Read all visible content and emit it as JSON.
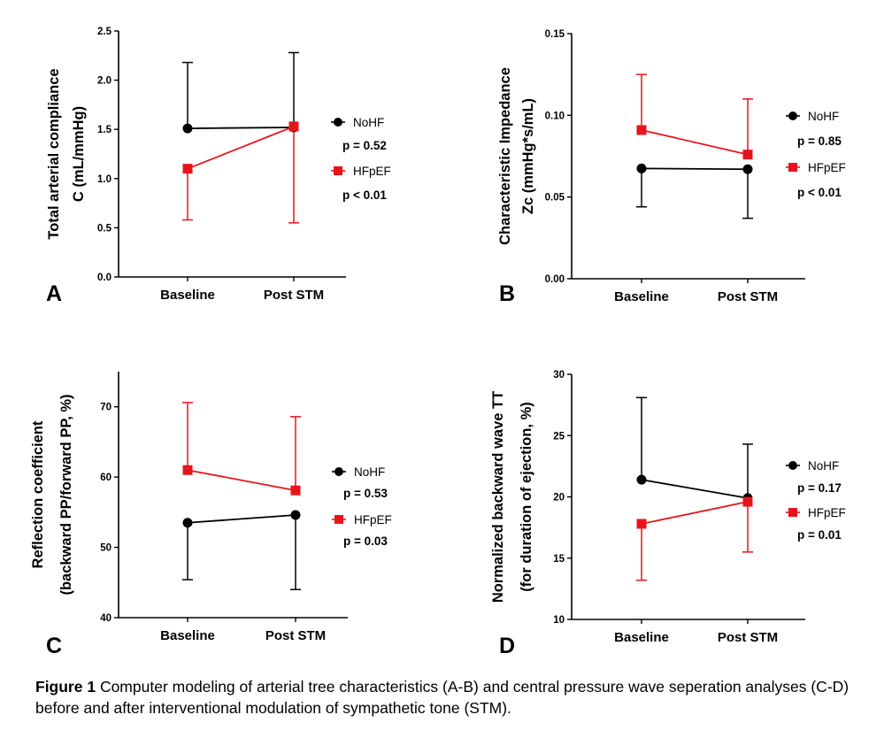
{
  "caption": {
    "lead": "Figure 1",
    "text": " Computer modeling of arterial tree characteristics (A-B) and central pressure wave seperation analyses (C-D) before and after interventional modulation of sympathetic tone (STM)."
  },
  "chart_data": [
    {
      "type": "line",
      "panel_label": "A",
      "categories": [
        "Baseline",
        "Post STM"
      ],
      "ylabel": [
        "Total arterial compliance",
        "C (mL/mmHg)"
      ],
      "ylim": [
        0,
        2.5
      ],
      "yticks": [
        "0.0",
        "0.5",
        "1.0",
        "1.5",
        "2.0",
        "2.5"
      ],
      "tick_values": [
        0,
        0.5,
        1.0,
        1.5,
        2.0,
        2.5
      ],
      "series": [
        {
          "name": "NoHF",
          "p_label": "p = 0.52",
          "color": "#000000",
          "marker": "circle",
          "values": [
            1.51,
            1.52
          ],
          "errors": [
            {
              "dir": "up",
              "to": 2.18
            },
            {
              "dir": "up",
              "to": 2.28
            }
          ]
        },
        {
          "name": "HFpEF",
          "p_label": "p < 0.01",
          "color": "#e8141b",
          "marker": "square",
          "values": [
            1.1,
            1.53
          ],
          "errors": [
            {
              "dir": "down",
              "to": 0.58
            },
            {
              "dir": "down",
              "to": 0.55
            }
          ]
        }
      ]
    },
    {
      "type": "line",
      "panel_label": "B",
      "categories": [
        "Baseline",
        "Post STM"
      ],
      "ylabel": [
        "Characteristic Impedance",
        "Zc (mmHg*s/mL)"
      ],
      "ylim": [
        0,
        0.15
      ],
      "yticks": [
        "0.00",
        "0.05",
        "0.10",
        "0.15"
      ],
      "tick_values": [
        0,
        0.05,
        0.1,
        0.15
      ],
      "series": [
        {
          "name": "NoHF",
          "p_label": "p = 0.85",
          "color": "#000000",
          "marker": "circle",
          "values": [
            0.0675,
            0.067
          ],
          "errors": [
            {
              "dir": "down",
              "to": 0.044
            },
            {
              "dir": "down",
              "to": 0.037
            }
          ]
        },
        {
          "name": "HFpEF",
          "p_label": "p < 0.01",
          "color": "#e8141b",
          "marker": "square",
          "values": [
            0.091,
            0.076
          ],
          "errors": [
            {
              "dir": "up",
              "to": 0.125
            },
            {
              "dir": "up",
              "to": 0.11
            }
          ]
        }
      ]
    },
    {
      "type": "line",
      "panel_label": "C",
      "categories": [
        "Baseline",
        "Post STM"
      ],
      "ylabel": [
        "Reflection coefficient",
        "(backward PP/forward PP, %)"
      ],
      "ylim": [
        40,
        75
      ],
      "yticks": [
        "40",
        "50",
        "60",
        "70"
      ],
      "tick_values": [
        40,
        50,
        60,
        70
      ],
      "series": [
        {
          "name": "NoHF",
          "p_label": "p = 0.53",
          "color": "#000000",
          "marker": "circle",
          "values": [
            53.5,
            54.6
          ],
          "errors": [
            {
              "dir": "down",
              "to": 45.4
            },
            {
              "dir": "down",
              "to": 44.0
            }
          ]
        },
        {
          "name": "HFpEF",
          "p_label": "p = 0.03",
          "color": "#e8141b",
          "marker": "square",
          "values": [
            61.0,
            58.1
          ],
          "errors": [
            {
              "dir": "up",
              "to": 70.6
            },
            {
              "dir": "up",
              "to": 68.6
            }
          ]
        }
      ]
    },
    {
      "type": "line",
      "panel_label": "D",
      "categories": [
        "Baseline",
        "Post STM"
      ],
      "ylabel": [
        "Normalized backward wave TT",
        "(for duration of ejection, %)"
      ],
      "ylim": [
        10,
        30
      ],
      "yticks": [
        "10",
        "15",
        "20",
        "25",
        "30"
      ],
      "tick_values": [
        10,
        15,
        20,
        25,
        30
      ],
      "series": [
        {
          "name": "NoHF",
          "p_label": "p = 0.17",
          "color": "#000000",
          "marker": "circle",
          "values": [
            21.4,
            19.9
          ],
          "errors": [
            {
              "dir": "up",
              "to": 28.1
            },
            {
              "dir": "up",
              "to": 24.3
            }
          ]
        },
        {
          "name": "HFpEF",
          "p_label": "p = 0.01",
          "color": "#e8141b",
          "marker": "square",
          "values": [
            17.8,
            19.6
          ],
          "errors": [
            {
              "dir": "down",
              "to": 13.2
            },
            {
              "dir": "down",
              "to": 15.5
            }
          ]
        }
      ]
    }
  ]
}
